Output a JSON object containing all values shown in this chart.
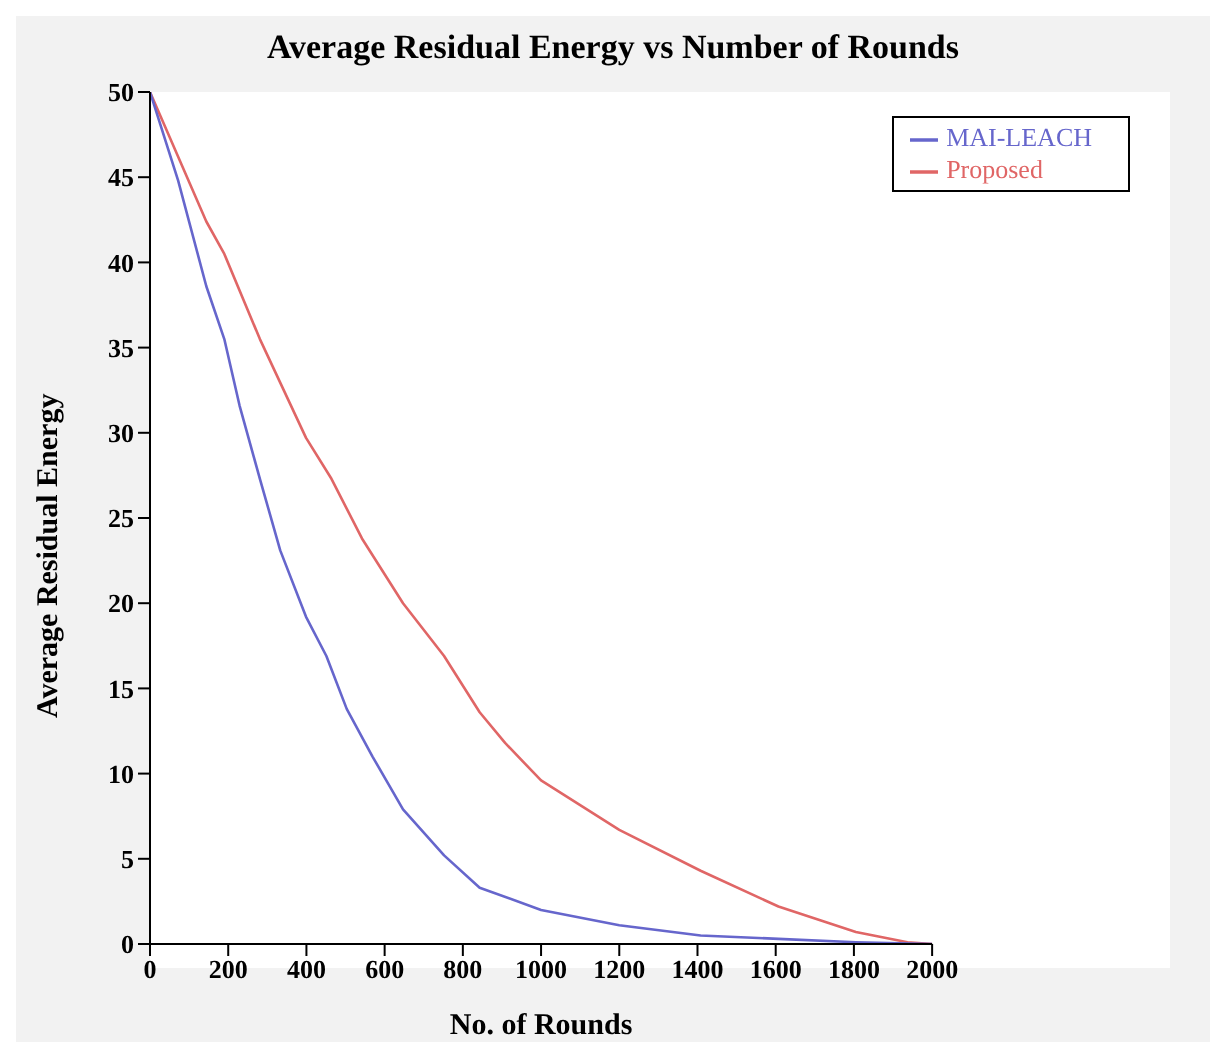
{
  "chart_data": {
    "type": "line",
    "title": "Average Residual Energy vs Number of Rounds",
    "xlabel": "No. of Rounds",
    "ylabel": "Average Residual Energy",
    "xlim": [
      0,
      2000
    ],
    "ylim": [
      0,
      50
    ],
    "xticks": [
      0,
      200,
      400,
      600,
      800,
      1000,
      1200,
      1400,
      1600,
      1800,
      2000
    ],
    "yticks": [
      0,
      5,
      10,
      15,
      20,
      25,
      30,
      35,
      40,
      45,
      50
    ],
    "grid": false,
    "legend": "top right",
    "marker": "none",
    "line_style": "solid",
    "series": [
      {
        "name": "Proposed",
        "color": "#e06666",
        "x": [
          0,
          144,
          190,
          281,
          399,
          464,
          542,
          647,
          752,
          843,
          908,
          1000,
          1200,
          1408,
          1607,
          1805,
          1937,
          2000
        ],
        "values": [
          50,
          42.4,
          40.5,
          35.5,
          29.7,
          27.3,
          23.8,
          20,
          16.9,
          13.6,
          11.8,
          9.6,
          6.7,
          4.3,
          2.2,
          0.7,
          0.1,
          0
        ]
      },
      {
        "name": "MAI-LEACH",
        "color": "#6666cc",
        "x": [
          0,
          72,
          144,
          190,
          229,
          281,
          333,
          399,
          451,
          503,
          569,
          647,
          752,
          843,
          1000,
          1200,
          1408,
          1607,
          1805,
          2000
        ],
        "values": [
          50,
          44.8,
          38.6,
          35.5,
          31.6,
          27.3,
          23.1,
          19.2,
          16.9,
          13.8,
          11,
          7.9,
          5.2,
          3.3,
          2,
          1.1,
          0.5,
          0.3,
          0.1,
          0
        ]
      }
    ]
  }
}
